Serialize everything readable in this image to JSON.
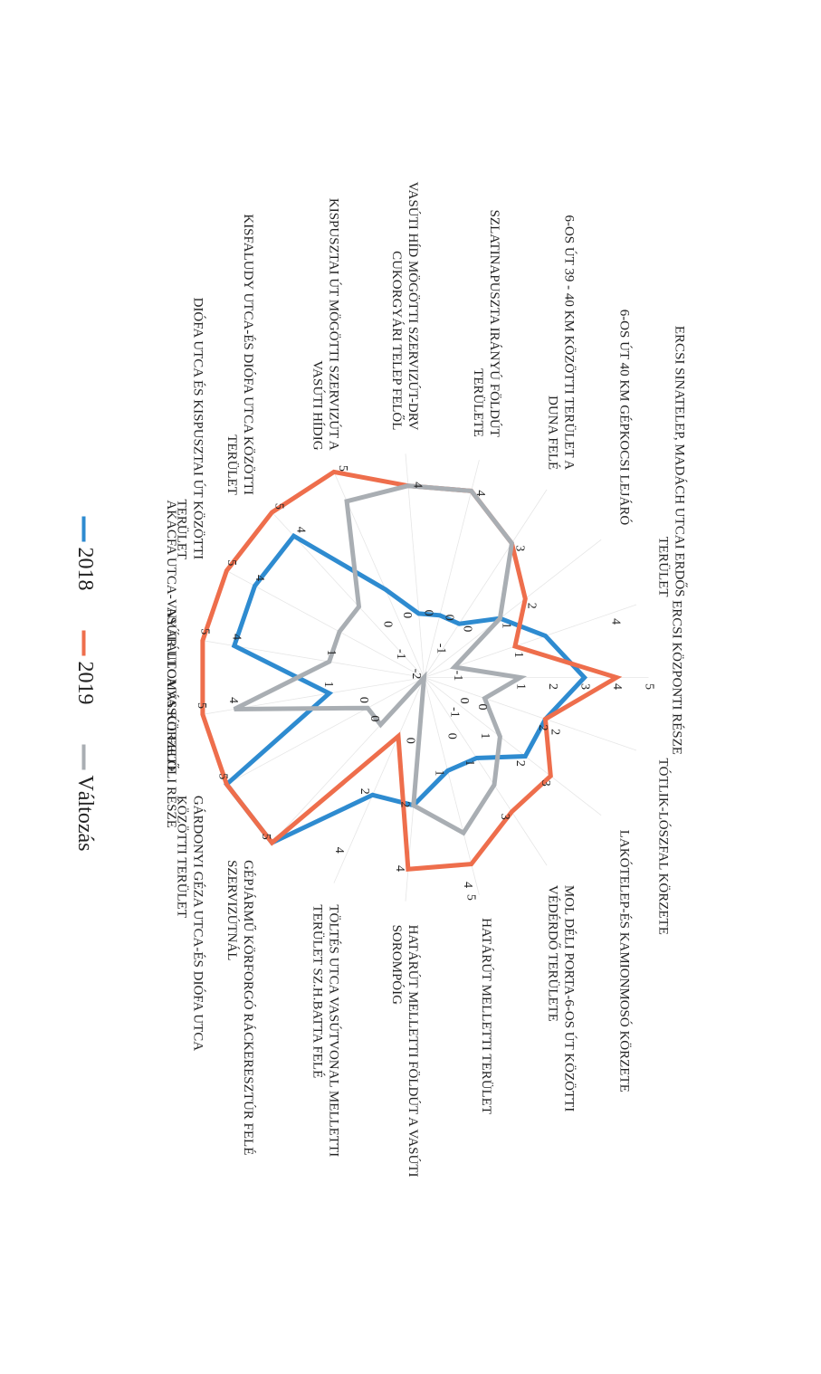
{
  "colors": {
    "2018": "#2e8bd0",
    "2019": "#ee6e4c",
    "valtozas": "#a9aeb3",
    "axis": "#555555"
  },
  "chart_data": {
    "type": "radar",
    "orientation": "rotated 90 degrees clockwise",
    "scale": {
      "min": -2,
      "max": 5
    },
    "categories": [
      "Ercsi központi része",
      "Tótlik-Lószfal körzete",
      "Lakótelep-és kamionmosó körzete",
      "MOL déli porta-6-os út közötti védérdő területe",
      "Határút melletti terület",
      "Határút melletti földút a vasúti sorompóig",
      "Töltés utca vasútvonal melletti terület Sz.H.Batta felé",
      "Gépjármű körforgó Ráckeresztúr felé szervizútnál",
      "Gárdonyi Géza utca-és Diófa utca közötti terület",
      "Nyár utca vasút felőli része",
      "Akácfa utca-Vasútállomás körzete",
      "Diófa utca és Kispusztai út közötti terület",
      "Kisfaludy utca-és Diófa utca közötti terület",
      "Kispusztai út mögötti szervizút a vasúti hídig",
      "Vasúti híd mögötti szervizút-DRV cukorgyári telep felől",
      "Szlatinapuszta irányú földút területe",
      "6-os út 39 - 40 km közötti terület a Duna felé",
      "6-os út 40 km gépkocsi lejáró",
      "Ercsi Sinatelep, Madách utcai erdős terület"
    ],
    "series": [
      {
        "name": "2018",
        "values": [
          3,
          2,
          2,
          1,
          1,
          2,
          2,
          5,
          5,
          1,
          4,
          4,
          4,
          1,
          0,
          0,
          0,
          1,
          2
        ]
      },
      {
        "name": "2019",
        "values": [
          4,
          2,
          3,
          3,
          4,
          4,
          0,
          5,
          5,
          5,
          5,
          5,
          5,
          5,
          4,
          4,
          3,
          2,
          1
        ]
      },
      {
        "name": "Változás",
        "values": [
          1,
          0,
          1,
          2,
          3,
          2,
          -2,
          0,
          0,
          4,
          1,
          1,
          1,
          4,
          4,
          4,
          3,
          1,
          -1
        ]
      }
    ],
    "value_labels": [
      [
        {
          "t": "3",
          "v": 3
        },
        {
          "t": "4",
          "v": 4
        },
        {
          "t": "5",
          "v": 5
        },
        {
          "t": "2",
          "v": 2
        },
        {
          "t": "1",
          "v": 1
        }
      ],
      [
        {
          "t": "2",
          "v": 2
        },
        {
          "t": "2",
          "v": 2.4
        },
        {
          "t": "0",
          "v": 0
        },
        {
          "t": "0",
          "v": -0.6
        }
      ],
      [
        {
          "t": "2",
          "v": 2
        },
        {
          "t": "3",
          "v": 3
        },
        {
          "t": "-1",
          "v": -0.6
        },
        {
          "t": "1",
          "v": 0.6
        }
      ],
      [
        {
          "t": "3",
          "v": 3
        },
        {
          "t": "1",
          "v": 1
        },
        {
          "t": "0",
          "v": 0
        }
      ],
      [
        {
          "t": "5",
          "v": 5
        },
        {
          "t": "4",
          "v": 4.6
        },
        {
          "t": "1",
          "v": 1
        }
      ],
      [
        {
          "t": "4",
          "v": 4
        },
        {
          "t": "2",
          "v": 2
        },
        {
          "t": "0",
          "v": 0
        }
      ],
      [
        {
          "t": "4",
          "v": 4
        },
        {
          "t": "2",
          "v": 2
        },
        {
          "t": "-2",
          "v": -2
        }
      ],
      [
        {
          "t": "5",
          "v": 5
        },
        {
          "t": "0",
          "v": 0
        }
      ],
      [
        {
          "t": "5",
          "v": 5
        },
        {
          "t": "0",
          "v": 0
        }
      ],
      [
        {
          "t": "5",
          "v": 5
        },
        {
          "t": "4",
          "v": 4
        },
        {
          "t": "1",
          "v": 1
        }
      ],
      [
        {
          "t": "5",
          "v": 5
        },
        {
          "t": "4",
          "v": 4
        },
        {
          "t": "1",
          "v": 1
        }
      ],
      [
        {
          "t": "5",
          "v": 5
        },
        {
          "t": "4",
          "v": 4
        },
        {
          "t": "-1",
          "v": -1
        }
      ],
      [
        {
          "t": "5",
          "v": 5
        },
        {
          "t": "4",
          "v": 4
        },
        {
          "t": "0",
          "v": 0
        }
      ],
      [
        {
          "t": "5",
          "v": 5
        },
        {
          "t": "0",
          "v": 0
        }
      ],
      [
        {
          "t": "4",
          "v": 4
        },
        {
          "t": "0",
          "v": 0
        }
      ],
      [
        {
          "t": "4",
          "v": 4
        },
        {
          "t": "0",
          "v": 0
        },
        {
          "t": "-1",
          "v": -1
        }
      ],
      [
        {
          "t": "3",
          "v": 3
        },
        {
          "t": "0",
          "v": 0
        }
      ],
      [
        {
          "t": "2",
          "v": 2
        },
        {
          "t": "1",
          "v": 1
        }
      ],
      [
        {
          "t": "4",
          "v": 4.2
        },
        {
          "t": "1",
          "v": 1
        },
        {
          "t": "-1",
          "v": -1
        }
      ]
    ],
    "legend": {
      "position": "bottom",
      "entries": [
        "2018",
        "2019",
        "Változás"
      ]
    }
  }
}
